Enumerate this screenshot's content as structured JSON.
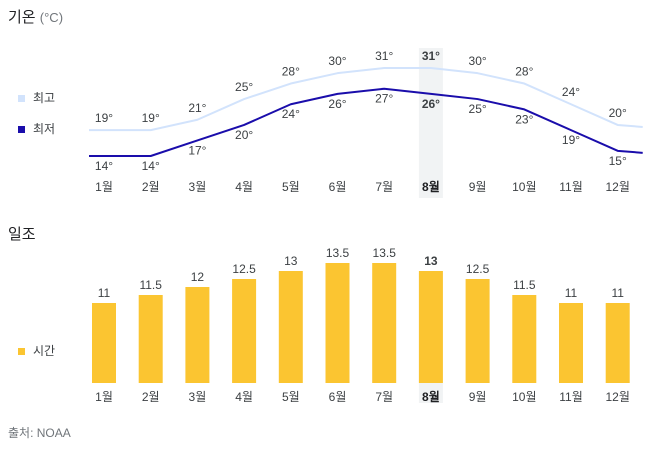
{
  "temperature": {
    "title": "기온",
    "unit": "(°C)",
    "legend": [
      {
        "label": "최고",
        "color": "#d2e3fc"
      },
      {
        "label": "최저",
        "color": "#1a0dab"
      }
    ]
  },
  "sunshine": {
    "title": "일조",
    "legend": [
      {
        "label": "시간",
        "color": "#fbc531"
      }
    ]
  },
  "selected_month_index": 7,
  "source": "출처: NOAA",
  "chart_data": [
    {
      "type": "line",
      "categories": [
        "1월",
        "2월",
        "3월",
        "4월",
        "5월",
        "6월",
        "7월",
        "8월",
        "9월",
        "10월",
        "11월",
        "12월"
      ],
      "series": [
        {
          "name": "최고",
          "color": "#d2e3fc",
          "values": [
            19,
            19,
            21,
            25,
            28,
            30,
            31,
            31,
            30,
            28,
            24,
            20
          ],
          "labels": [
            "19°",
            "19°",
            "21°",
            "25°",
            "28°",
            "30°",
            "31°",
            "31°",
            "30°",
            "28°",
            "24°",
            "20°"
          ]
        },
        {
          "name": "최저",
          "color": "#1a0dab",
          "values": [
            14,
            14,
            17,
            20,
            24,
            26,
            27,
            26,
            25,
            23,
            19,
            15
          ],
          "labels": [
            "14°",
            "14°",
            "17°",
            "20°",
            "24°",
            "26°",
            "27°",
            "26°",
            "25°",
            "23°",
            "19°",
            "15°"
          ]
        }
      ]
    },
    {
      "type": "bar",
      "categories": [
        "1월",
        "2월",
        "3월",
        "4월",
        "5월",
        "6월",
        "7월",
        "8월",
        "9월",
        "10월",
        "11월",
        "12월"
      ],
      "series": [
        {
          "name": "시간",
          "color": "#fbc531",
          "values": [
            11,
            11.5,
            12,
            12.5,
            13,
            13.5,
            13.5,
            13,
            12.5,
            11.5,
            11,
            11
          ],
          "labels": [
            "11",
            "11.5",
            "12",
            "12.5",
            "13",
            "13.5",
            "13.5",
            "13",
            "12.5",
            "11.5",
            "11",
            "11"
          ]
        }
      ]
    }
  ]
}
